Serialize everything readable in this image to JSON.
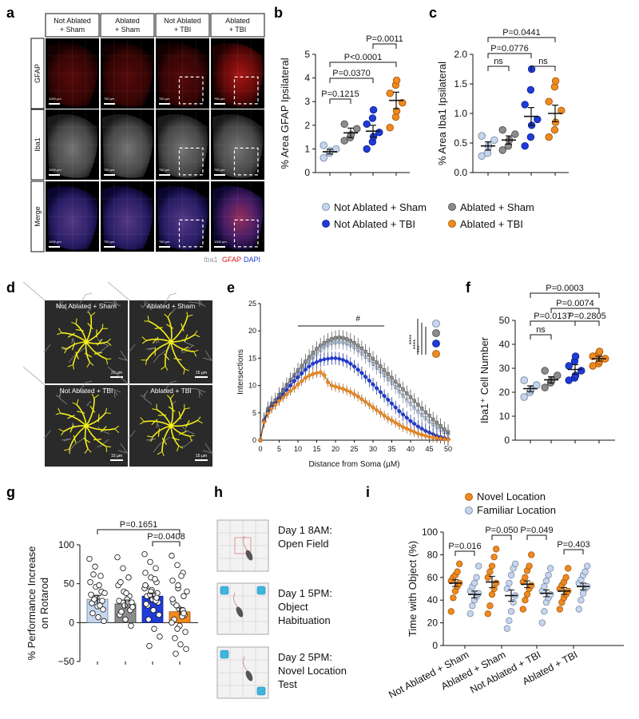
{
  "panel_letters": {
    "a": "a",
    "b": "b",
    "c": "c",
    "d": "d",
    "e": "e",
    "f": "f",
    "g": "g",
    "h": "h",
    "i": "i"
  },
  "colors": {
    "not_ablated_sham": "#c5d6ee",
    "ablated_sham": "#8c8c8c",
    "not_ablated_tbi": "#1f3bd8",
    "ablated_tbi": "#f0891e",
    "novel": "#f0891e",
    "familiar": "#c5d6ee",
    "trace": "#f5ee1a"
  },
  "panel_a": {
    "columns": [
      "Not Ablated\n+ Sham",
      "Ablated\n+ Sham",
      "Not Ablated\n+ TBI",
      "Ablated\n+ TBI"
    ],
    "rows": [
      "GFAP",
      "Iba1",
      "Merge"
    ],
    "scale_labels": [
      [
        "1000 µm",
        "750 µm",
        "750 µm",
        "750 µm"
      ],
      [
        "1000 µm",
        "750 µm",
        "750 µm",
        "750 µm"
      ],
      [
        "1000 µm",
        "750 µm",
        "750 µm",
        "1000 µm"
      ]
    ],
    "legend": {
      "iba1": "Iba1",
      "gfap": "GFAP",
      "dapi": "DAPI"
    }
  },
  "legend_bc": [
    "Not Ablated + Sham",
    "Ablated + Sham",
    "Not Ablated + TBI",
    "Ablated + TBI"
  ],
  "panel_b": {
    "ylabel": "% Area GFAP Ipsilateral",
    "yticks": [
      "0",
      "1",
      "2",
      "3",
      "4",
      "5"
    ],
    "ylim": [
      0,
      5
    ],
    "means": [
      0.88,
      1.68,
      1.75,
      3.05
    ],
    "sems": [
      0.1,
      0.2,
      0.25,
      0.35
    ],
    "points": [
      [
        0.62,
        0.82,
        0.92,
        1.0,
        1.15
      ],
      [
        1.35,
        1.48,
        1.6,
        1.85,
        2.05
      ],
      [
        1.0,
        1.3,
        1.52,
        1.7,
        2.05,
        2.3,
        2.65
      ],
      [
        1.9,
        2.35,
        2.6,
        2.95,
        3.35,
        3.7,
        3.9
      ]
    ],
    "comparisons": [
      "P=0.1215",
      "P=0.0370",
      "P<0.0001",
      "P=0.0011"
    ]
  },
  "panel_c": {
    "ylabel": "% Area Iba1 Ipsilateral",
    "yticks": [
      "0.0",
      "0.5",
      "1.0",
      "1.5",
      "2.0"
    ],
    "ylim": [
      0,
      2
    ],
    "means": [
      0.45,
      0.55,
      0.95,
      1.0
    ],
    "sems": [
      0.07,
      0.07,
      0.15,
      0.14
    ],
    "points": [
      [
        0.28,
        0.33,
        0.45,
        0.55,
        0.62
      ],
      [
        0.38,
        0.45,
        0.55,
        0.65,
        0.72
      ],
      [
        0.45,
        0.6,
        0.8,
        0.9,
        1.15,
        1.4,
        1.75
      ],
      [
        0.6,
        0.72,
        0.85,
        1.05,
        1.2,
        1.45,
        1.55
      ]
    ],
    "comparisons": [
      "ns",
      "P=0.0776",
      "ns",
      "P=0.0441"
    ]
  },
  "panel_d": {
    "labels": [
      "Not Ablated + Sham",
      "Ablated + Sham",
      "Not Ablated + TBI",
      "Ablated + TBI"
    ],
    "scale_labels": [
      "20 µm",
      "15 µm",
      "15 µm",
      "15 µm"
    ]
  },
  "chart_data": [
    {
      "type": "line",
      "panel": "e",
      "title": "",
      "xlabel": "Distance from Soma (µM)",
      "ylabel": "Intersections",
      "xlim": [
        0,
        50
      ],
      "ylim": [
        0,
        25
      ],
      "xticks": [
        "0",
        "5",
        "10",
        "15",
        "20",
        "25",
        "30",
        "35",
        "40",
        "45",
        "50"
      ],
      "yticks": [
        "0",
        "5",
        "10",
        "15",
        "20",
        "25"
      ],
      "annotation": "#",
      "significance": [
        "****",
        "****",
        "***"
      ],
      "x": [
        0,
        1,
        2,
        3,
        4,
        5,
        6,
        7,
        8,
        9,
        10,
        11,
        12,
        13,
        14,
        15,
        16,
        17,
        18,
        19,
        20,
        21,
        22,
        23,
        24,
        25,
        26,
        27,
        28,
        29,
        30,
        31,
        32,
        33,
        34,
        35,
        36,
        37,
        38,
        39,
        40,
        41,
        42,
        43,
        44,
        45,
        46,
        47,
        48,
        49,
        50
      ],
      "series": [
        {
          "values": [
            0,
            3.7,
            5.4,
            6.4,
            7.0,
            8.0,
            8.8,
            9.6,
            10.4,
            11.2,
            12.0,
            12.8,
            13.6,
            14.4,
            15.2,
            15.9,
            16.5,
            17.1,
            17.5,
            17.8,
            17.9,
            18.0,
            17.9,
            17.7,
            17.4,
            17.0,
            16.5,
            15.9,
            15.3,
            14.7,
            14.0,
            13.3,
            12.6,
            11.9,
            11.2,
            10.5,
            9.7,
            8.9,
            8.1,
            7.3,
            6.6,
            5.9,
            5.2,
            4.6,
            4.0,
            3.4,
            2.9,
            2.4,
            1.9,
            1.5,
            1.1
          ]
        },
        {
          "values": [
            0,
            3.7,
            5.7,
            6.7,
            7.3,
            8.3,
            9.2,
            10.1,
            11.0,
            11.9,
            12.8,
            13.6,
            14.4,
            15.2,
            16.0,
            16.7,
            17.3,
            17.8,
            18.2,
            18.5,
            18.7,
            18.8,
            18.7,
            18.5,
            18.2,
            17.8,
            17.3,
            16.8,
            16.2,
            15.6,
            14.9,
            14.2,
            13.5,
            12.8,
            12.1,
            11.4,
            10.7,
            10.0,
            9.3,
            8.6,
            7.9,
            7.2,
            6.5,
            5.8,
            5.1,
            4.5,
            3.8,
            3.2,
            2.6,
            2.0,
            1.5
          ]
        },
        {
          "values": [
            0,
            3.5,
            5.2,
            6.2,
            6.8,
            7.6,
            8.4,
            9.2,
            10.0,
            10.8,
            11.5,
            12.2,
            12.9,
            13.5,
            14.0,
            14.3,
            14.6,
            14.8,
            14.9,
            15.0,
            15.0,
            14.9,
            14.7,
            14.4,
            14.0,
            13.5,
            12.9,
            12.3,
            11.6,
            10.9,
            10.2,
            9.5,
            8.8,
            8.1,
            7.4,
            6.7,
            6.0,
            5.3,
            4.7,
            4.1,
            3.5,
            3.0,
            2.5,
            2.1,
            1.7,
            1.4,
            1.1,
            0.8,
            0.6,
            0.4,
            0.2
          ]
        },
        {
          "values": [
            0,
            3.3,
            4.9,
            5.8,
            6.5,
            7.2,
            7.8,
            8.4,
            9.0,
            9.6,
            10.2,
            10.8,
            11.4,
            11.8,
            12.1,
            12.3,
            12.4,
            11.9,
            10.6,
            10.0,
            9.8,
            9.6,
            9.4,
            9.1,
            8.8,
            8.4,
            8.0,
            7.5,
            7.0,
            6.5,
            6.0,
            5.5,
            5.0,
            4.5,
            4.0,
            3.6,
            3.2,
            2.8,
            2.4,
            2.1,
            1.8,
            1.5,
            1.2,
            1.0,
            0.8,
            0.6,
            0.5,
            0.4,
            0.3,
            0.2,
            0.1
          ]
        }
      ]
    },
    {
      "type": "scatter",
      "panel": "f",
      "ylabel": "Iba1⁺ Cell Number",
      "yticks": [
        "0",
        "10",
        "20",
        "30",
        "40",
        "50"
      ],
      "ylim": [
        0,
        50
      ],
      "means": [
        21.5,
        25.2,
        29.5,
        34.0
      ],
      "sems": [
        1.2,
        1.3,
        2.0,
        1.0
      ],
      "points": [
        [
          18,
          20,
          21,
          23,
          25
        ],
        [
          22,
          24,
          25,
          27,
          29
        ],
        [
          25,
          26,
          27,
          29,
          31,
          33,
          35
        ],
        [
          31,
          32,
          33,
          34,
          35,
          36,
          37
        ]
      ],
      "comparisons": [
        "ns",
        "P=0.0137",
        "P=0.2805",
        "P=0.0074",
        "P=0.0003"
      ]
    },
    {
      "type": "bar",
      "panel": "g",
      "ylabel": "% Performance Increase\non Rotarod",
      "yticks": [
        "−50",
        "0",
        "50",
        "100"
      ],
      "ylim": [
        -50,
        100
      ],
      "values": [
        30,
        24,
        34,
        14
      ],
      "sems": [
        5,
        5,
        4,
        5
      ],
      "points": [
        [
          82,
          72,
          60,
          52,
          46,
          40,
          36,
          32,
          28,
          25,
          21,
          17,
          12,
          7,
          2,
          62,
          48,
          38,
          30,
          22
        ],
        [
          84,
          70,
          58,
          48,
          40,
          34,
          28,
          22,
          16,
          10,
          4,
          -4,
          52,
          38,
          26,
          14,
          30,
          20
        ],
        [
          88,
          78,
          70,
          64,
          58,
          52,
          46,
          42,
          38,
          34,
          30,
          26,
          22,
          16,
          10,
          4,
          -8,
          -18,
          -30,
          56,
          44,
          36,
          28,
          48,
          40,
          32,
          24
        ],
        [
          86,
          74,
          64,
          54,
          44,
          34,
          26,
          18,
          10,
          4,
          -4,
          -12,
          -20,
          -28,
          -34,
          -40,
          60,
          40,
          22,
          8,
          0,
          -8,
          16,
          30,
          48,
          12
        ]
      ],
      "comparisons": [
        "P=0.0408",
        "P=0.1651"
      ]
    },
    {
      "type": "scatter",
      "panel": "i",
      "ylabel": "Time with Object (%)",
      "yticks": [
        "0",
        "20",
        "40",
        "60",
        "80",
        "100"
      ],
      "ylim": [
        0,
        100
      ],
      "categories": [
        "Not Ablated + Sham",
        "Ablated + Sham",
        "Not Ablated + TBI",
        "Ablated + TBI"
      ],
      "series": [
        {
          "name": "Novel Location",
          "means": [
            55,
            56,
            54,
            48
          ],
          "sems": [
            3,
            5,
            3,
            3
          ],
          "points": [
            [
              30,
              42,
              48,
              52,
              55,
              57,
              60,
              62,
              65,
              72
            ],
            [
              28,
              35,
              45,
              50,
              55,
              60,
              65,
              70,
              78,
              85
            ],
            [
              32,
              40,
              45,
              50,
              53,
              56,
              60,
              66,
              70,
              80
            ],
            [
              32,
              38,
              42,
              45,
              48,
              50,
              53,
              56,
              60,
              68
            ]
          ]
        },
        {
          "name": "Familiar Location",
          "means": [
            45,
            44,
            46,
            52
          ],
          "sems": [
            3,
            5,
            3,
            3
          ],
          "points": [
            [
              28,
              35,
              40,
              43,
              46,
              48,
              52,
              55,
              60,
              70
            ],
            [
              15,
              22,
              30,
              38,
              44,
              50,
              55,
              62,
              68,
              72
            ],
            [
              20,
              30,
              38,
              42,
              45,
              48,
              52,
              57,
              62,
              68
            ],
            [
              32,
              40,
              46,
              50,
              52,
              55,
              58,
              62,
              65,
              70
            ]
          ]
        }
      ],
      "comparisons": [
        "P=0.016",
        "P=0.050",
        "P=0.049",
        "P=0.403"
      ]
    }
  ],
  "panel_h": {
    "steps": [
      [
        "Day 1 8AM:",
        "Open Field"
      ],
      [
        "Day 1 5PM:",
        "Object",
        "Habituation"
      ],
      [
        "Day 2 5PM:",
        "Novel Location",
        "Test"
      ]
    ]
  }
}
